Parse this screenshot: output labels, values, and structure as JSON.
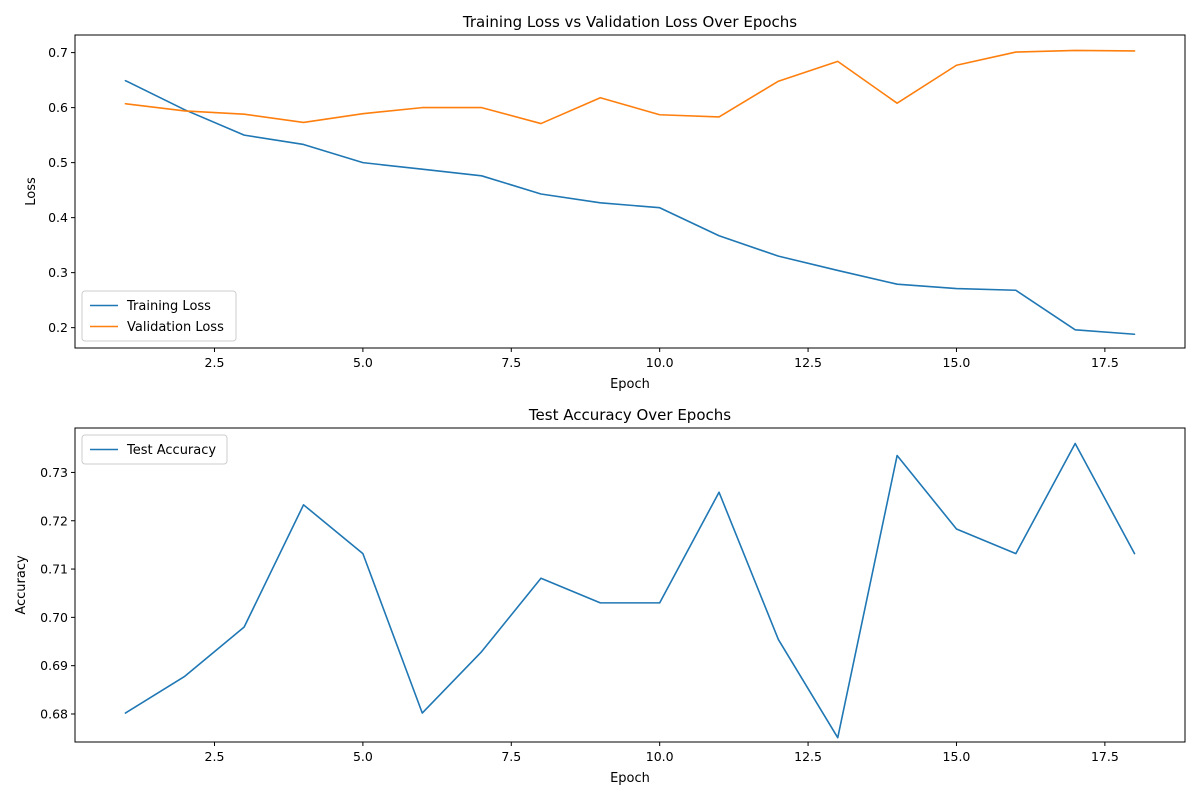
{
  "chart_data": [
    {
      "type": "line",
      "title": "Training Loss vs Validation Loss Over Epochs",
      "xlabel": "Epoch",
      "ylabel": "Loss",
      "xlim": [
        0.15,
        18.85
      ],
      "ylim": [
        0.163,
        0.732
      ],
      "x_ticks": [
        2.5,
        5.0,
        7.5,
        10.0,
        12.5,
        15.0,
        17.5
      ],
      "x_tick_labels": [
        "2.5",
        "5.0",
        "7.5",
        "10.0",
        "12.5",
        "15.0",
        "17.5"
      ],
      "y_ticks": [
        0.2,
        0.3,
        0.4,
        0.5,
        0.6,
        0.7
      ],
      "y_tick_labels": [
        "0.2",
        "0.3",
        "0.4",
        "0.5",
        "0.6",
        "0.7"
      ],
      "grid": false,
      "legend_position": "lower-left",
      "x": [
        1,
        2,
        3,
        4,
        5,
        6,
        7,
        8,
        9,
        10,
        11,
        12,
        13,
        14,
        15,
        16,
        17,
        18
      ],
      "series": [
        {
          "name": "Training Loss",
          "color": "#1f77b4",
          "values": [
            0.649,
            0.596,
            0.55,
            0.533,
            0.5,
            0.488,
            0.476,
            0.443,
            0.427,
            0.418,
            0.367,
            0.33,
            0.304,
            0.279,
            0.271,
            0.268,
            0.196,
            0.188
          ]
        },
        {
          "name": "Validation Loss",
          "color": "#ff7f0e",
          "values": [
            0.607,
            0.594,
            0.588,
            0.573,
            0.589,
            0.6,
            0.6,
            0.571,
            0.618,
            0.587,
            0.583,
            0.648,
            0.684,
            0.608,
            0.677,
            0.701,
            0.704,
            0.703
          ]
        }
      ]
    },
    {
      "type": "line",
      "title": "Test Accuracy Over Epochs",
      "xlabel": "Epoch",
      "ylabel": "Accuracy",
      "xlim": [
        0.15,
        18.85
      ],
      "ylim": [
        0.6742,
        0.7392
      ],
      "x_ticks": [
        2.5,
        5.0,
        7.5,
        10.0,
        12.5,
        15.0,
        17.5
      ],
      "x_tick_labels": [
        "2.5",
        "5.0",
        "7.5",
        "10.0",
        "12.5",
        "15.0",
        "17.5"
      ],
      "y_ticks": [
        0.68,
        0.69,
        0.7,
        0.71,
        0.72,
        0.73
      ],
      "y_tick_labels": [
        "0.68",
        "0.69",
        "0.70",
        "0.71",
        "0.72",
        "0.73"
      ],
      "grid": false,
      "legend_position": "top-left",
      "x": [
        1,
        2,
        3,
        4,
        5,
        6,
        7,
        8,
        9,
        10,
        11,
        12,
        13,
        14,
        15,
        16,
        17,
        18
      ],
      "series": [
        {
          "name": "Test Accuracy",
          "color": "#1f77b4",
          "values": [
            0.6802,
            0.6878,
            0.698,
            0.7233,
            0.7132,
            0.6802,
            0.6929,
            0.7081,
            0.703,
            0.703,
            0.7259,
            0.6954,
            0.6751,
            0.7335,
            0.7183,
            0.7132,
            0.736,
            0.7132
          ]
        }
      ]
    }
  ]
}
